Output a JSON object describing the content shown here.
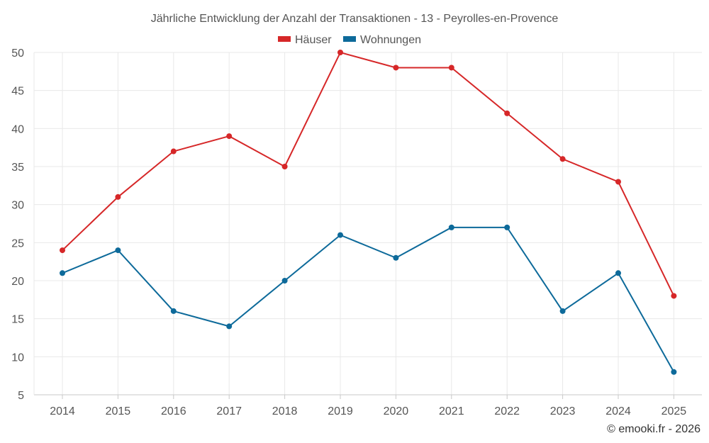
{
  "chart_data": {
    "type": "line",
    "title": "Jährliche Entwicklung der Anzahl der Transaktionen - 13 - Peyrolles-en-Provence",
    "categories": [
      "2014",
      "2015",
      "2016",
      "2017",
      "2018",
      "2019",
      "2020",
      "2021",
      "2022",
      "2023",
      "2024",
      "2025"
    ],
    "series": [
      {
        "name": "Häuser",
        "color": "#d62728",
        "values": [
          24,
          31,
          37,
          39,
          35,
          50,
          48,
          48,
          42,
          36,
          33,
          18
        ]
      },
      {
        "name": "Wohnungen",
        "color": "#0d6a9a",
        "values": [
          21,
          24,
          16,
          14,
          20,
          26,
          23,
          27,
          27,
          16,
          21,
          8
        ]
      }
    ],
    "ylim": [
      5,
      50
    ],
    "yticks": [
      5,
      10,
      15,
      20,
      25,
      30,
      35,
      40,
      45,
      50
    ],
    "grid": true,
    "legend_position": "top-center",
    "xlabel": "",
    "ylabel": ""
  },
  "credit": "© emooki.fr - 2026"
}
